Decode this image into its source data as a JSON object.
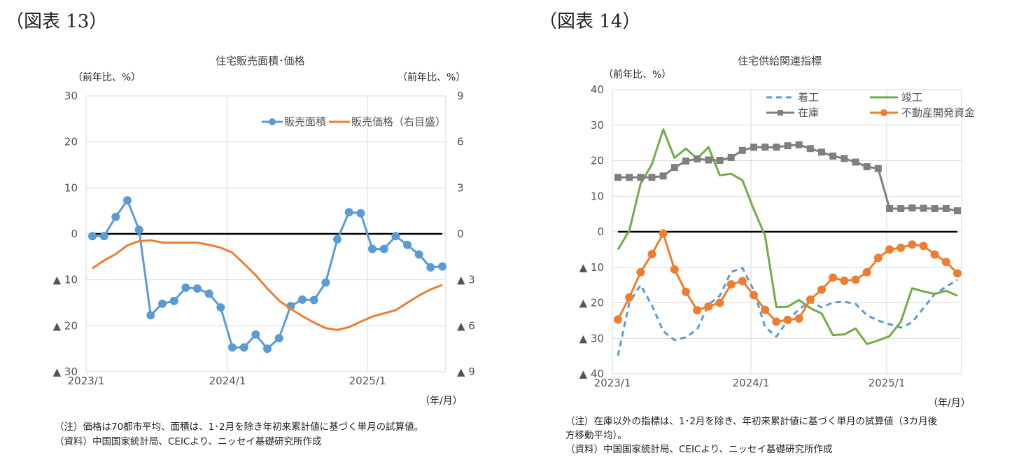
{
  "figures": [
    {
      "label": "（図表 13）",
      "title": "住宅販売面積･価格",
      "unit_left": "（前年比、%）",
      "unit_right": "（前年比、%）",
      "unit_x": "（年/月）",
      "notes": [
        "（注）価格は70都市平均、面積は、1･2月を除き年初来累計値に基づく単月の試算値。",
        "（資料）中国国家統計局、CEICより、ニッセイ基礎研究所作成"
      ]
    },
    {
      "label": "（図表 14）",
      "title": "住宅供給関連指標",
      "unit_left": "（前年比、%）",
      "unit_x": "（年/月）",
      "notes": [
        "（注）在庫以外の指標は、1･2月を除き、年初来累計値に基づく単月の試算値（3カ月後",
        "方移動平均）。",
        "（資料）中国国家統計局、CEICより、ニッセイ基礎研究所作成"
      ]
    }
  ],
  "chart_data": [
    {
      "type": "line",
      "title": "住宅販売面積･価格",
      "xlabel": "（年/月）",
      "ylabel": "（前年比、%）",
      "y2label": "（前年比、%）",
      "x_start": "2023/1",
      "x_end": "2025/7",
      "xticks": [
        "2023/1",
        "2024/1",
        "2025/1"
      ],
      "ylim": [
        -30,
        30
      ],
      "yticks": [
        "30",
        "20",
        "10",
        "0",
        "▲ 10",
        "▲ 20",
        "▲ 30"
      ],
      "y2lim": [
        -9,
        9
      ],
      "y2ticks": [
        "9",
        "6",
        "3",
        "0",
        "▲ 3",
        "▲ 6",
        "▲ 9"
      ],
      "legend": "top-right",
      "grid": true,
      "series": [
        {
          "name": "販売面積",
          "axis": "left",
          "color": "#5b9bd5",
          "marker": "circle",
          "values": [
            -0.5,
            -0.5,
            3.7,
            7.3,
            0.9,
            -17.7,
            -15.2,
            -14.6,
            -11.7,
            -11.9,
            -13.0,
            -16.0,
            -24.7,
            -24.7,
            -21.9,
            -25.0,
            -22.7,
            -15.7,
            -14.3,
            -14.4,
            -10.6,
            -1.2,
            4.7,
            4.5,
            -3.3,
            -3.3,
            -0.5,
            -2.4,
            -4.5,
            -7.3,
            -7.1
          ]
        },
        {
          "name": "販売価格（右目盛）",
          "axis": "right",
          "color": "#ed7d31",
          "marker": "none",
          "values": [
            -2.25,
            -1.74,
            -1.32,
            -0.75,
            -0.48,
            -0.42,
            -0.57,
            -0.57,
            -0.57,
            -0.57,
            -0.72,
            -0.9,
            -1.23,
            -1.95,
            -2.7,
            -3.57,
            -4.35,
            -4.89,
            -5.37,
            -5.79,
            -6.15,
            -6.27,
            -6.09,
            -5.73,
            -5.4,
            -5.19,
            -4.98,
            -4.5,
            -4.02,
            -3.63,
            -3.33
          ]
        }
      ]
    },
    {
      "type": "line",
      "title": "住宅供給関連指標",
      "xlabel": "（年/月）",
      "ylabel": "（前年比、%）",
      "x_start": "2023/1",
      "x_end": "2025/7",
      "xticks": [
        "2023/1",
        "2024/1",
        "2025/1"
      ],
      "ylim": [
        -40,
        40
      ],
      "yticks": [
        "40",
        "30",
        "20",
        "10",
        "0",
        "▲ 10",
        "▲ 20",
        "▲ 30",
        "▲ 40"
      ],
      "legend": "top-right",
      "grid": true,
      "series": [
        {
          "name": "着工",
          "color": "#5b9bd5",
          "marker": "none",
          "dash": true,
          "values": [
            -34.9,
            -20.0,
            -15.0,
            -20.7,
            -28.0,
            -30.5,
            -29.7,
            -27.5,
            -20.5,
            -18.0,
            -11.3,
            -10.2,
            -16.5,
            -26.8,
            -29.5,
            -25.0,
            -21.8,
            -19.6,
            -21.3,
            -19.9,
            -19.7,
            -20.3,
            -23.5,
            -25.0,
            -26.0,
            -27.0,
            -25.5,
            -21.5,
            -17.5,
            -15.5,
            -13.5
          ]
        },
        {
          "name": "竣工",
          "color": "#70ad47",
          "marker": "none",
          "values": [
            -5.0,
            0.3,
            13.5,
            19.0,
            28.8,
            20.8,
            23.4,
            20.6,
            23.8,
            15.9,
            16.3,
            14.5,
            6.3,
            -1.1,
            -21.2,
            -21.1,
            -19.2,
            -21.5,
            -23.0,
            -29.1,
            -28.9,
            -27.2,
            -31.6,
            -30.6,
            -29.4,
            -25.3,
            -15.9,
            -16.8,
            -17.5,
            -16.6,
            -18.0
          ]
        },
        {
          "name": "在庫",
          "color": "#7f7f7f",
          "marker": "square",
          "values": [
            15.3,
            15.3,
            15.3,
            15.3,
            15.7,
            18.1,
            19.9,
            20.5,
            20.2,
            20.1,
            20.9,
            22.9,
            23.8,
            23.8,
            23.8,
            24.2,
            24.5,
            23.4,
            22.4,
            21.3,
            20.6,
            19.6,
            18.3,
            17.8,
            6.5,
            6.5,
            6.7,
            6.6,
            6.5,
            6.5,
            5.9
          ]
        },
        {
          "name": "不動産開発資金",
          "color": "#ed7d31",
          "marker": "circle",
          "values": [
            -24.7,
            -18.5,
            -11.4,
            -6.3,
            -0.5,
            -10.6,
            -16.9,
            -22.1,
            -21.0,
            -20.0,
            -14.8,
            -13.9,
            -17.8,
            -22.0,
            -25.3,
            -24.8,
            -24.4,
            -19.1,
            -16.3,
            -12.9,
            -13.8,
            -13.5,
            -11.4,
            -7.4,
            -5.0,
            -4.5,
            -3.6,
            -4.0,
            -6.4,
            -8.5,
            -11.7
          ]
        }
      ]
    }
  ]
}
